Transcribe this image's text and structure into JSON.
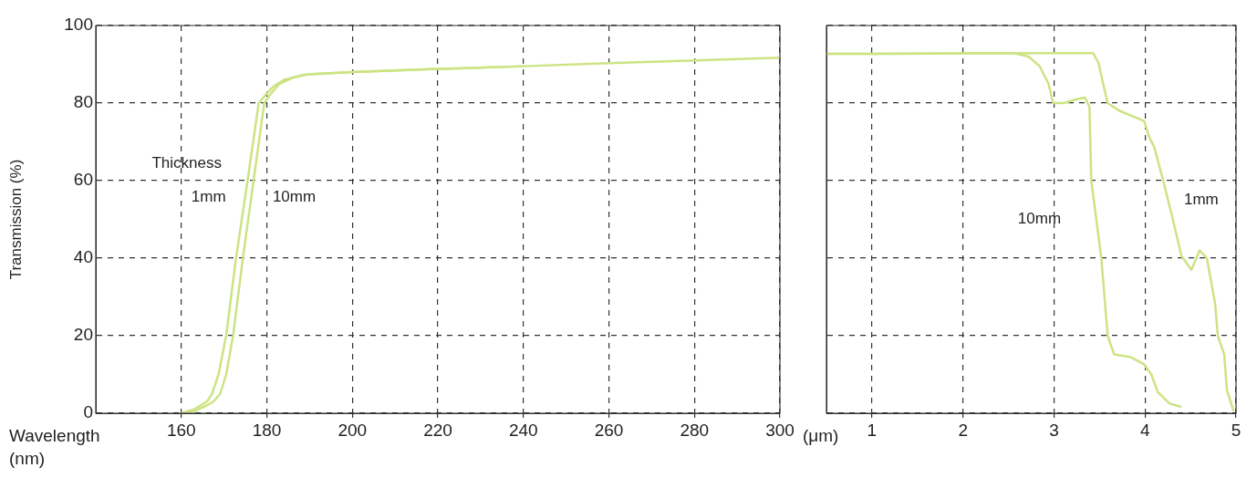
{
  "chart_data": [
    {
      "type": "line",
      "xlabel": "Wavelength (nm)",
      "ylabel": "Transmission (%)",
      "xlim": [
        140,
        300
      ],
      "xticks": [
        160,
        180,
        200,
        220,
        240,
        260,
        280,
        300
      ],
      "ylim": [
        0,
        100
      ],
      "yticks": [
        0,
        20,
        40,
        60,
        80,
        100
      ],
      "grid": true,
      "legend": false,
      "marker": "none",
      "line_style": "solid",
      "series": [
        {
          "color": "#cde383",
          "x": [
            160,
            163,
            166,
            167.2,
            168.7,
            170.5,
            172.8,
            175.5,
            178.1,
            180,
            181.5,
            184,
            188.6,
            200,
            220,
            240,
            260,
            280,
            300
          ],
          "values": [
            0,
            1,
            3,
            5,
            10,
            20,
            40,
            60,
            80,
            82.5,
            84.2,
            86,
            87.3,
            88,
            88.8,
            89.5,
            90.3,
            91,
            91.7
          ]
        },
        {
          "color": "#cde383",
          "x": [
            161,
            163,
            165.9,
            167.5,
            169.1,
            170.5,
            172.1,
            174.4,
            176.9,
            179.4,
            181,
            183,
            186,
            190,
            200,
            220,
            240
          ],
          "values": [
            0,
            0.5,
            2,
            3,
            5,
            10,
            20,
            40,
            60,
            80,
            82.5,
            85,
            86.5,
            87.5,
            88,
            88.8,
            89.5
          ]
        }
      ],
      "annotations": [
        "Thickness",
        "1mm",
        "10mm"
      ]
    },
    {
      "type": "line",
      "xlabel": "(μm)",
      "xlim": [
        0.5,
        5
      ],
      "xticks": [
        1,
        2,
        3,
        4,
        5
      ],
      "ylim": [
        0,
        100
      ],
      "yticks": [
        0,
        20,
        40,
        60,
        80,
        100
      ],
      "tick_labels": "x",
      "grid": true,
      "legend": false,
      "marker": "none",
      "line_style": "solid",
      "series": [
        {
          "color": "#cde383",
          "x": [
            0.5,
            1,
            2,
            2.57,
            2.72,
            2.84,
            2.94,
            2.99,
            3.11,
            3.25,
            3.34,
            3.39,
            3.41,
            3.52,
            3.59,
            3.66,
            3.84,
            3.99,
            4.07,
            4.14,
            4.27,
            4.39
          ],
          "values": [
            92.7,
            92.7,
            92.8,
            92.8,
            92,
            89.6,
            85,
            80,
            80,
            81,
            81.4,
            79,
            60,
            40,
            20,
            15.2,
            14.5,
            12.6,
            10,
            5.5,
            2.5,
            1.7
          ]
        },
        {
          "color": "#cde383",
          "x": [
            0.5,
            1,
            2,
            3,
            3.43,
            3.49,
            3.54,
            3.59,
            3.72,
            3.99,
            4.05,
            4.1,
            4.2,
            4.3,
            4.4,
            4.51,
            4.6,
            4.68,
            4.77,
            4.8,
            4.87,
            4.9,
            4.97
          ],
          "values": [
            92.7,
            92.7,
            92.8,
            92.9,
            92.9,
            90.3,
            85,
            80,
            78,
            75.4,
            71,
            68.8,
            60,
            50.6,
            40.6,
            37,
            42,
            40,
            28.3,
            20,
            15.2,
            6,
            0.8
          ]
        }
      ],
      "annotations": [
        "10mm",
        "1mm"
      ]
    }
  ]
}
